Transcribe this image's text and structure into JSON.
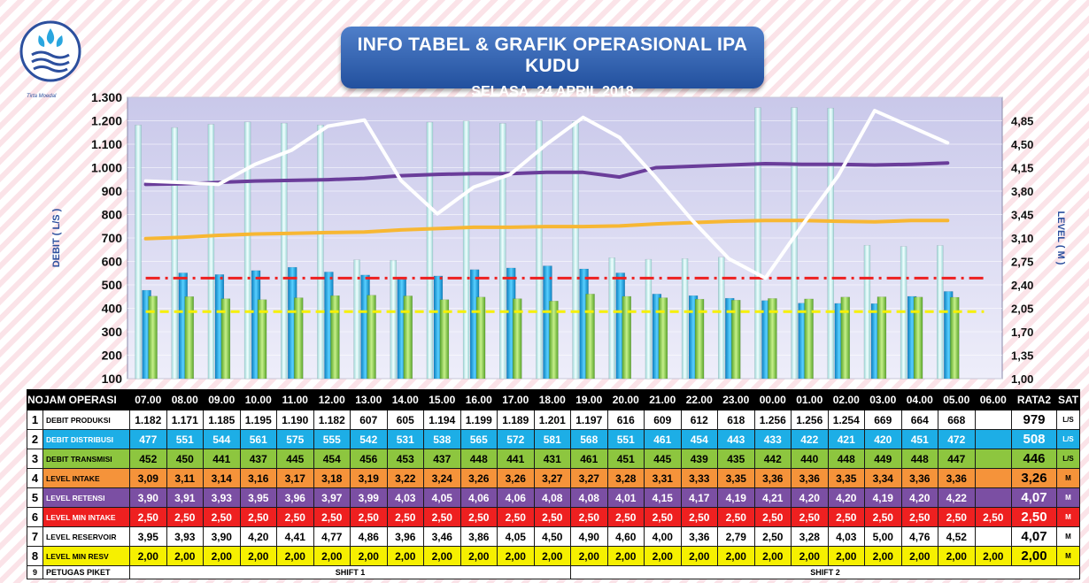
{
  "header": {
    "title": "INFO TABEL & GRAFIK OPERASIONAL IPA KUDU",
    "subtitle": "SELASA, 24 APRIL 2018",
    "logo_text": "Tirta Moedal"
  },
  "chart_data": {
    "type": "bar",
    "ylabel": "DEBIT ( L/S )",
    "y2label": "LEVEL ( M )",
    "ylim": [
      100,
      1300
    ],
    "y_ticks": [
      "100",
      "200",
      "300",
      "400",
      "500",
      "600",
      "700",
      "800",
      "900",
      "1.000",
      "1.100",
      "1.200",
      "1.300"
    ],
    "y2lim": [
      1.0,
      5.2
    ],
    "y2_ticks": [
      "1,00",
      "1,35",
      "1,70",
      "2,05",
      "2,40",
      "2,75",
      "3,10",
      "3,45",
      "3,80",
      "4,15",
      "4,50",
      "4,85"
    ],
    "categories": [
      "07.00",
      "08.00",
      "09.00",
      "10.00",
      "11.00",
      "12.00",
      "13.00",
      "14.00",
      "15.00",
      "16.00",
      "17.00",
      "18.00",
      "19.00",
      "20.00",
      "21.00",
      "22.00",
      "23.00",
      "00.00",
      "01.00",
      "02.00",
      "03.00",
      "04.00",
      "05.00",
      "06.00"
    ],
    "series": [
      {
        "name": "DEBIT PRODUKSI",
        "type": "bar",
        "axis": "left",
        "color": "#c8eeee",
        "values": [
          1182,
          1171,
          1185,
          1195,
          1190,
          1182,
          607,
          605,
          1194,
          1199,
          1189,
          1201,
          1197,
          616,
          609,
          612,
          618,
          1256,
          1256,
          1254,
          669,
          664,
          668,
          null
        ]
      },
      {
        "name": "DEBIT DISTRIBUSI",
        "type": "bar",
        "axis": "left",
        "color": "#1daee6",
        "values": [
          477,
          551,
          544,
          561,
          575,
          555,
          542,
          531,
          538,
          565,
          572,
          581,
          568,
          551,
          461,
          454,
          443,
          433,
          422,
          421,
          420,
          451,
          472,
          null
        ]
      },
      {
        "name": "DEBIT TRANSMISI",
        "type": "bar",
        "axis": "left",
        "color": "#8dc63f",
        "values": [
          452,
          450,
          441,
          437,
          445,
          454,
          456,
          453,
          437,
          448,
          441,
          431,
          461,
          451,
          445,
          439,
          435,
          442,
          440,
          448,
          449,
          448,
          447,
          null
        ]
      },
      {
        "name": "LEVEL INTAKE",
        "type": "line",
        "axis": "right",
        "color": "#f7b733",
        "values": [
          3.09,
          3.11,
          3.14,
          3.16,
          3.17,
          3.18,
          3.19,
          3.22,
          3.24,
          3.26,
          3.26,
          3.27,
          3.27,
          3.28,
          3.31,
          3.33,
          3.35,
          3.36,
          3.36,
          3.35,
          3.34,
          3.36,
          3.36,
          null
        ]
      },
      {
        "name": "LEVEL RETENSI",
        "type": "line",
        "axis": "right",
        "color": "#6a3d9a",
        "values": [
          3.9,
          3.91,
          3.93,
          3.95,
          3.96,
          3.97,
          3.99,
          4.03,
          4.05,
          4.06,
          4.06,
          4.08,
          4.08,
          4.01,
          4.15,
          4.17,
          4.19,
          4.21,
          4.2,
          4.2,
          4.19,
          4.2,
          4.22,
          null
        ]
      },
      {
        "name": "LEVEL MIN INTAKE",
        "type": "line",
        "axis": "right",
        "style": "dashdot",
        "color": "#ee2020",
        "values": [
          2.5,
          2.5,
          2.5,
          2.5,
          2.5,
          2.5,
          2.5,
          2.5,
          2.5,
          2.5,
          2.5,
          2.5,
          2.5,
          2.5,
          2.5,
          2.5,
          2.5,
          2.5,
          2.5,
          2.5,
          2.5,
          2.5,
          2.5,
          2.5
        ]
      },
      {
        "name": "LEVEL RESERVOIR",
        "type": "line",
        "axis": "right",
        "color": "#ffffff",
        "values": [
          3.95,
          3.93,
          3.9,
          4.2,
          4.41,
          4.77,
          4.86,
          3.96,
          3.46,
          3.86,
          4.05,
          4.5,
          4.9,
          4.6,
          4.0,
          3.36,
          2.79,
          2.5,
          3.28,
          4.03,
          5.0,
          4.76,
          4.52,
          null
        ]
      },
      {
        "name": "LEVEL MIN RESV",
        "type": "line",
        "axis": "right",
        "style": "dashed",
        "color": "#f6f000",
        "values": [
          2.0,
          2.0,
          2.0,
          2.0,
          2.0,
          2.0,
          2.0,
          2.0,
          2.0,
          2.0,
          2.0,
          2.0,
          2.0,
          2.0,
          2.0,
          2.0,
          2.0,
          2.0,
          2.0,
          2.0,
          2.0,
          2.0,
          2.0,
          2.0
        ]
      }
    ]
  },
  "table": {
    "headers": {
      "no": "NO",
      "jam": "JAM OPERASI",
      "rata": "RATA2",
      "sat": "SAT"
    },
    "hours": [
      "07.00",
      "08.00",
      "09.00",
      "10.00",
      "11.00",
      "12.00",
      "13.00",
      "14.00",
      "15.00",
      "16.00",
      "17.00",
      "18.00",
      "19.00",
      "20.00",
      "21.00",
      "22.00",
      "23.00",
      "00.00",
      "01.00",
      "02.00",
      "03.00",
      "04.00",
      "05.00",
      "06.00"
    ],
    "rows": [
      {
        "no": "1",
        "label": "DEBIT PRODUKSI",
        "cls": "r-produksi",
        "values": [
          "1.182",
          "1.171",
          "1.185",
          "1.195",
          "1.190",
          "1.182",
          "607",
          "605",
          "1.194",
          "1.199",
          "1.189",
          "1.201",
          "1.197",
          "616",
          "609",
          "612",
          "618",
          "1.256",
          "1.256",
          "1.254",
          "669",
          "664",
          "668",
          ""
        ],
        "avg": "979",
        "unit": "L/S"
      },
      {
        "no": "2",
        "label": "DEBIT DISTRIBUSI",
        "cls": "r-distribusi",
        "values": [
          "477",
          "551",
          "544",
          "561",
          "575",
          "555",
          "542",
          "531",
          "538",
          "565",
          "572",
          "581",
          "568",
          "551",
          "461",
          "454",
          "443",
          "433",
          "422",
          "421",
          "420",
          "451",
          "472",
          ""
        ],
        "avg": "508",
        "unit": "L/S"
      },
      {
        "no": "3",
        "label": "DEBIT TRANSMISI",
        "cls": "r-transmisi",
        "values": [
          "452",
          "450",
          "441",
          "437",
          "445",
          "454",
          "456",
          "453",
          "437",
          "448",
          "441",
          "431",
          "461",
          "451",
          "445",
          "439",
          "435",
          "442",
          "440",
          "448",
          "449",
          "448",
          "447",
          ""
        ],
        "avg": "446",
        "unit": "L/S"
      },
      {
        "no": "4",
        "label": "LEVEL INTAKE",
        "cls": "r-intake",
        "values": [
          "3,09",
          "3,11",
          "3,14",
          "3,16",
          "3,17",
          "3,18",
          "3,19",
          "3,22",
          "3,24",
          "3,26",
          "3,26",
          "3,27",
          "3,27",
          "3,28",
          "3,31",
          "3,33",
          "3,35",
          "3,36",
          "3,36",
          "3,35",
          "3,34",
          "3,36",
          "3,36",
          ""
        ],
        "avg": "3,26",
        "unit": "M"
      },
      {
        "no": "5",
        "label": "LEVEL RETENSI",
        "cls": "r-retensi",
        "values": [
          "3,90",
          "3,91",
          "3,93",
          "3,95",
          "3,96",
          "3,97",
          "3,99",
          "4,03",
          "4,05",
          "4,06",
          "4,06",
          "4,08",
          "4,08",
          "4,01",
          "4,15",
          "4,17",
          "4,19",
          "4,21",
          "4,20",
          "4,20",
          "4,19",
          "4,20",
          "4,22",
          ""
        ],
        "avg": "4,07",
        "unit": "M"
      },
      {
        "no": "6",
        "label": "LEVEL MIN INTAKE",
        "cls": "r-minintake",
        "values": [
          "2,50",
          "2,50",
          "2,50",
          "2,50",
          "2,50",
          "2,50",
          "2,50",
          "2,50",
          "2,50",
          "2,50",
          "2,50",
          "2,50",
          "2,50",
          "2,50",
          "2,50",
          "2,50",
          "2,50",
          "2,50",
          "2,50",
          "2,50",
          "2,50",
          "2,50",
          "2,50",
          "2,50"
        ],
        "avg": "2,50",
        "unit": "M"
      },
      {
        "no": "7",
        "label": "LEVEL RESERVOIR",
        "cls": "r-reservoir",
        "values": [
          "3,95",
          "3,93",
          "3,90",
          "4,20",
          "4,41",
          "4,77",
          "4,86",
          "3,96",
          "3,46",
          "3,86",
          "4,05",
          "4,50",
          "4,90",
          "4,60",
          "4,00",
          "3,36",
          "2,79",
          "2,50",
          "3,28",
          "4,03",
          "5,00",
          "4,76",
          "4,52",
          ""
        ],
        "avg": "4,07",
        "unit": "M"
      },
      {
        "no": "8",
        "label": "LEVEL MIN RESV",
        "cls": "r-minresv",
        "values": [
          "2,00",
          "2,00",
          "2,00",
          "2,00",
          "2,00",
          "2,00",
          "2,00",
          "2,00",
          "2,00",
          "2,00",
          "2,00",
          "2,00",
          "2,00",
          "2,00",
          "2,00",
          "2,00",
          "2,00",
          "2,00",
          "2,00",
          "2,00",
          "2,00",
          "2,00",
          "2,00",
          "2,00"
        ],
        "avg": "2,00",
        "unit": "M"
      }
    ],
    "petugas": {
      "no": "9",
      "label": "PETUGAS PIKET",
      "shift1": "SHIFT 1",
      "shift2": "SHIFT 2"
    }
  }
}
